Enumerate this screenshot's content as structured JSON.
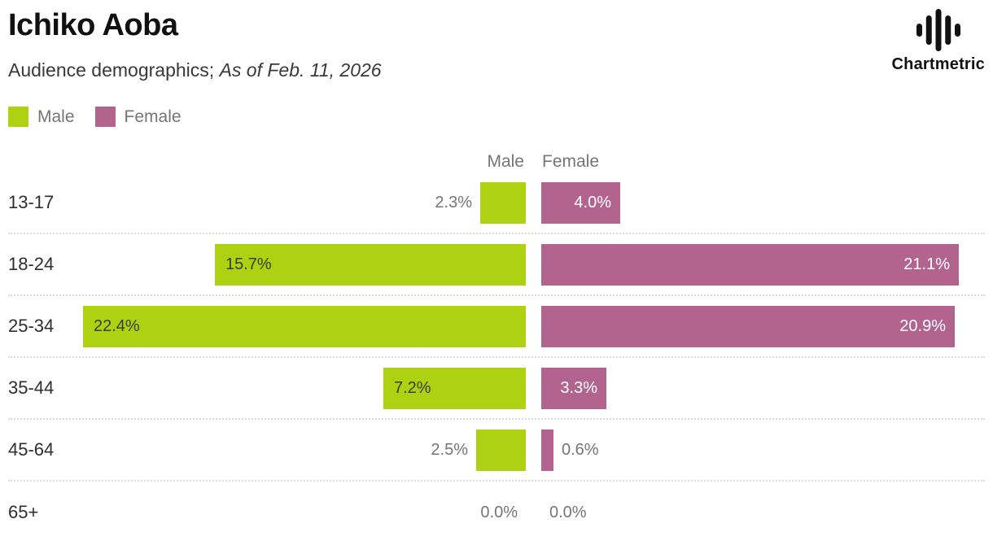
{
  "header": {
    "title": "Ichiko Aoba",
    "subtitle_plain": "Audience demographics; ",
    "subtitle_italic": "As of Feb. 11, 2026",
    "brand": "Chartmetric"
  },
  "legend": {
    "male_label": "Male",
    "female_label": "Female"
  },
  "colors": {
    "male_bar": "#aed111",
    "female_bar": "#b2648f",
    "muted_text": "#757575",
    "dark_text": "#2e2e2e",
    "divider": "#d8d8d8",
    "brand_icon": "#111111"
  },
  "chart_data": {
    "type": "bar",
    "orientation": "horizontal-diverging",
    "title": "Ichiko Aoba",
    "subtitle": "Audience demographics; As of Feb. 11, 2026",
    "categories": [
      "13-17",
      "18-24",
      "25-34",
      "35-44",
      "45-64",
      "65+"
    ],
    "column_headers": [
      "Male",
      "Female"
    ],
    "series": [
      {
        "name": "Male",
        "color": "#aed111",
        "values": [
          2.3,
          15.7,
          22.4,
          7.2,
          2.5,
          0.0
        ],
        "labels": [
          "2.3%",
          "15.7%",
          "22.4%",
          "7.2%",
          "2.5%",
          "0.0%"
        ]
      },
      {
        "name": "Female",
        "color": "#b2648f",
        "values": [
          4.0,
          21.1,
          20.9,
          3.3,
          0.6,
          0.0
        ],
        "labels": [
          "4.0%",
          "21.1%",
          "20.9%",
          "3.3%",
          "0.6%",
          "0.0%"
        ]
      }
    ],
    "value_suffix": "%",
    "xlim_percent": [
      0,
      23
    ],
    "grid": "dotted-row-dividers",
    "legend_position": "top-left"
  }
}
